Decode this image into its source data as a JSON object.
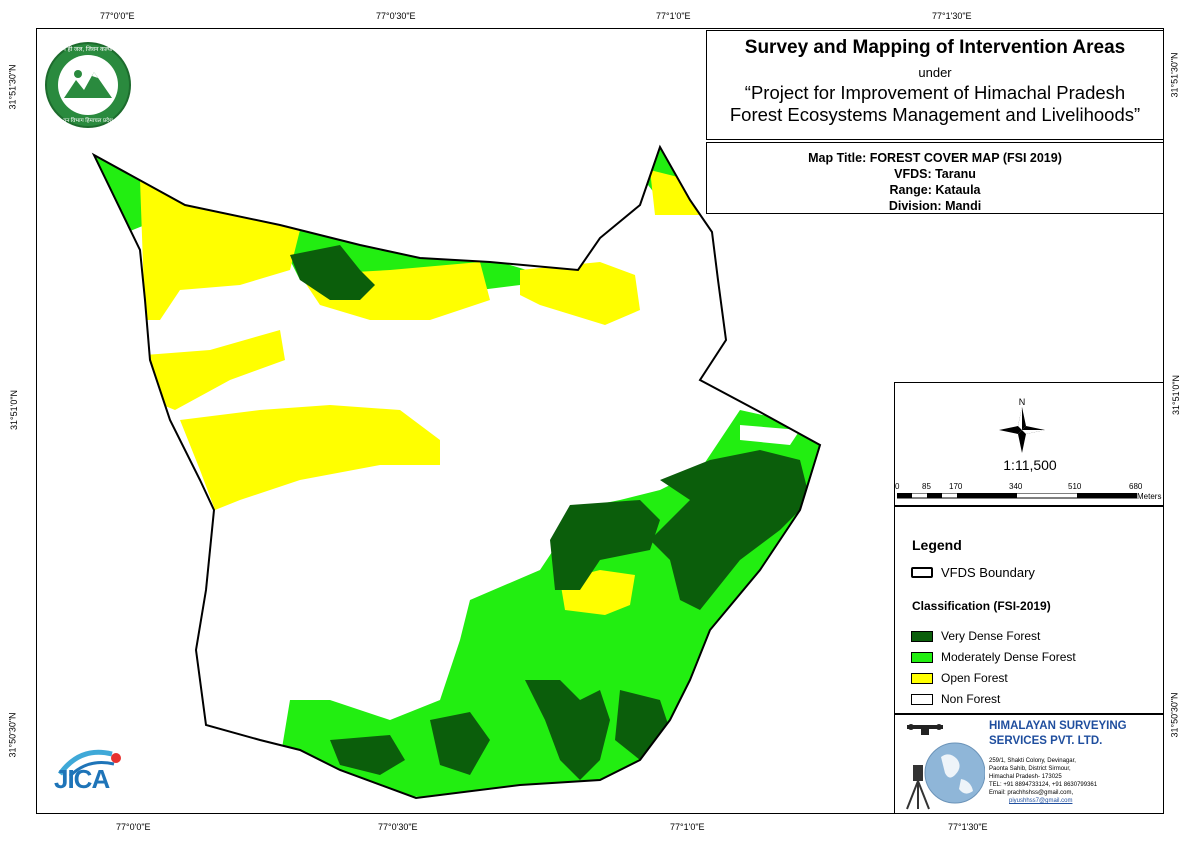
{
  "title": {
    "main": "Survey and Mapping of Intervention Areas",
    "under": "under",
    "project_line1": "“Project for Improvement of Himachal Pradesh",
    "project_line2": "Forest Ecosystems Management and Livelihoods”"
  },
  "map_info": {
    "map_title": "Map Title: FOREST COVER MAP (FSI 2019)",
    "vfds": "VFDS: Taranu",
    "range": "Range: Kataula",
    "division": "Division: Mandi"
  },
  "coordinates": {
    "top": [
      "77°0'0\"E",
      "77°0'30\"E",
      "77°1'0\"E",
      "77°1'30\"E"
    ],
    "bottom": [
      "77°0'0\"E",
      "77°0'30\"E",
      "77°1'0\"E",
      "77°1'30\"E"
    ],
    "left": [
      "31°51'30\"N",
      "31°51'0\"N",
      "31°50'30\"N"
    ],
    "right": [
      "31°51'30\"N",
      "31°51'0\"N",
      "31°50'30\"N"
    ]
  },
  "scale": {
    "north": "N",
    "ratio": "1:11,500",
    "ticks": [
      "0",
      "85",
      "170",
      "340",
      "510",
      "680"
    ],
    "unit": "Meters"
  },
  "legend": {
    "heading": "Legend",
    "boundary_label": "VFDS Boundary",
    "classification_heading": "Classification (FSI-2019)",
    "classes": [
      {
        "label": "Very Dense Forest",
        "color": "#0b5e0b"
      },
      {
        "label": "Moderately Dense Forest",
        "color": "#22ee11"
      },
      {
        "label": "Open Forest",
        "color": "#ffff00"
      },
      {
        "label": "Non Forest",
        "color": "#ffffff"
      }
    ]
  },
  "company": {
    "name_line1": "HIMALAYAN SURVEYING",
    "name_line2": "SERVICES PVT. LTD.",
    "address": [
      "259/1, Shakti Colony, Devinagar,",
      "Paonta Sahib, District Sirmour,",
      "Himachal Pradesh- 173025",
      "TEL: +91 8894733124, +91 8630799361",
      "Email: prachhshss@gmail.com,",
      "piyushhss7@gmail.com"
    ],
    "color": "#1f4e9e"
  },
  "logos": {
    "hp_forest_text_top": "वन ही जल, जिवन कल्याण",
    "hp_forest_text_bottom": "वन विभाग हिमाचल प्रदेश",
    "jica": "JICA"
  }
}
